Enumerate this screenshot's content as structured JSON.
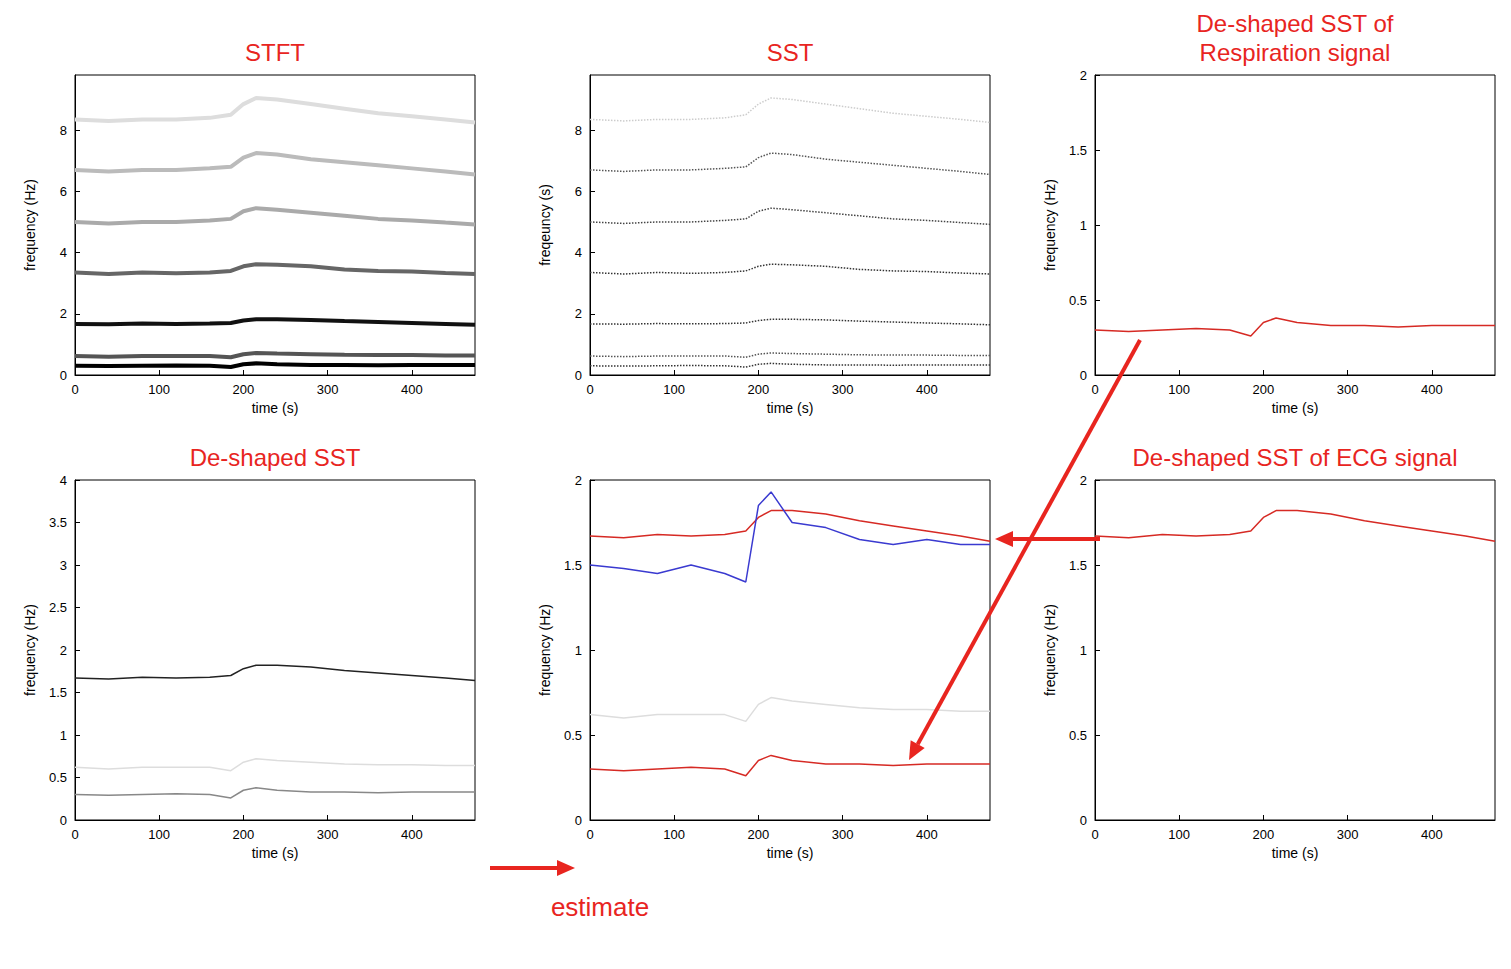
{
  "annotation": "estimate",
  "chart_data": [
    {
      "type": "line",
      "title": "STFT",
      "x_label": "time (s)",
      "y_label": "frequency (Hz)",
      "x": [
        0,
        40,
        80,
        120,
        160,
        185,
        200,
        215,
        240,
        280,
        320,
        360,
        400,
        440,
        475
      ],
      "xlim": [
        0,
        475
      ],
      "xticks": [
        0,
        100,
        200,
        300,
        400
      ],
      "ylim": [
        0,
        9.8
      ],
      "yticks": [
        0,
        2,
        4,
        6,
        8
      ],
      "grid": false,
      "series": [
        {
          "color": "#000000",
          "line_style": "solid",
          "values": [
            0.3,
            0.29,
            0.3,
            0.31,
            0.3,
            0.26,
            0.35,
            0.38,
            0.35,
            0.33,
            0.33,
            0.32,
            0.33,
            0.33,
            0.33
          ]
        },
        {
          "color": "#555555",
          "line_style": "solid",
          "values": [
            0.62,
            0.6,
            0.62,
            0.62,
            0.62,
            0.58,
            0.68,
            0.72,
            0.7,
            0.68,
            0.66,
            0.65,
            0.65,
            0.64,
            0.64
          ]
        },
        {
          "color": "#111111",
          "line_style": "solid",
          "values": [
            1.67,
            1.66,
            1.68,
            1.67,
            1.68,
            1.7,
            1.78,
            1.82,
            1.82,
            1.8,
            1.76,
            1.73,
            1.7,
            1.67,
            1.64
          ]
        },
        {
          "color": "#666666",
          "line_style": "solid",
          "values": [
            3.35,
            3.3,
            3.35,
            3.32,
            3.35,
            3.4,
            3.55,
            3.62,
            3.6,
            3.55,
            3.45,
            3.4,
            3.38,
            3.33,
            3.3
          ]
        },
        {
          "color": "#aaaaaa",
          "line_style": "solid",
          "values": [
            5.0,
            4.95,
            5.0,
            5.0,
            5.05,
            5.1,
            5.35,
            5.45,
            5.4,
            5.3,
            5.2,
            5.1,
            5.05,
            4.98,
            4.92
          ]
        },
        {
          "color": "#bbbbbb",
          "line_style": "solid",
          "values": [
            6.7,
            6.65,
            6.7,
            6.7,
            6.75,
            6.8,
            7.1,
            7.25,
            7.2,
            7.05,
            6.95,
            6.85,
            6.75,
            6.65,
            6.55
          ]
        },
        {
          "color": "#dddddd",
          "line_style": "solid",
          "values": [
            8.35,
            8.3,
            8.35,
            8.35,
            8.4,
            8.5,
            8.85,
            9.05,
            9.0,
            8.85,
            8.7,
            8.55,
            8.45,
            8.35,
            8.25
          ]
        }
      ]
    },
    {
      "type": "line",
      "title": "SST",
      "x_label": "time (s)",
      "y_label": "freqeuncy (s)",
      "x": [
        0,
        40,
        80,
        120,
        160,
        185,
        200,
        215,
        240,
        280,
        320,
        360,
        400,
        440,
        475
      ],
      "xlim": [
        0,
        475
      ],
      "xticks": [
        0,
        100,
        200,
        300,
        400
      ],
      "ylim": [
        0,
        9.8
      ],
      "yticks": [
        0,
        2,
        4,
        6,
        8
      ],
      "grid": false,
      "series": [
        {
          "color": "#333333",
          "line_style": "dotted",
          "values": [
            0.3,
            0.29,
            0.3,
            0.31,
            0.3,
            0.26,
            0.35,
            0.38,
            0.35,
            0.33,
            0.33,
            0.32,
            0.33,
            0.33,
            0.33
          ]
        },
        {
          "color": "#555555",
          "line_style": "dotted",
          "values": [
            0.62,
            0.6,
            0.62,
            0.62,
            0.62,
            0.58,
            0.68,
            0.72,
            0.7,
            0.68,
            0.66,
            0.65,
            0.65,
            0.64,
            0.64
          ]
        },
        {
          "color": "#333333",
          "line_style": "dotted",
          "values": [
            1.67,
            1.66,
            1.68,
            1.67,
            1.68,
            1.7,
            1.78,
            1.82,
            1.82,
            1.8,
            1.76,
            1.73,
            1.7,
            1.67,
            1.64
          ]
        },
        {
          "color": "#333333",
          "line_style": "dotted",
          "values": [
            3.35,
            3.3,
            3.35,
            3.32,
            3.35,
            3.4,
            3.55,
            3.62,
            3.6,
            3.55,
            3.45,
            3.4,
            3.38,
            3.33,
            3.3
          ]
        },
        {
          "color": "#444444",
          "line_style": "dotted",
          "values": [
            5.0,
            4.95,
            5.0,
            5.0,
            5.05,
            5.1,
            5.35,
            5.45,
            5.4,
            5.3,
            5.2,
            5.1,
            5.05,
            4.98,
            4.92
          ]
        },
        {
          "color": "#555555",
          "line_style": "dotted",
          "values": [
            6.7,
            6.65,
            6.7,
            6.7,
            6.75,
            6.8,
            7.1,
            7.25,
            7.2,
            7.05,
            6.95,
            6.85,
            6.75,
            6.65,
            6.55
          ]
        },
        {
          "color": "#cccccc",
          "line_style": "dotted",
          "values": [
            8.35,
            8.3,
            8.35,
            8.35,
            8.4,
            8.5,
            8.85,
            9.05,
            9.0,
            8.85,
            8.7,
            8.55,
            8.45,
            8.35,
            8.25
          ]
        }
      ]
    },
    {
      "type": "line",
      "title": "De-shaped SST of Respiration signal",
      "x_label": "time (s)",
      "y_label": "frequency (Hz)",
      "x": [
        0,
        40,
        80,
        120,
        160,
        185,
        200,
        215,
        240,
        280,
        320,
        360,
        400,
        440,
        475
      ],
      "xlim": [
        0,
        475
      ],
      "xticks": [
        0,
        100,
        200,
        300,
        400
      ],
      "ylim": [
        0,
        2
      ],
      "yticks": [
        0,
        0.5,
        1,
        1.5,
        2
      ],
      "grid": false,
      "series": [
        {
          "color": "#d62a24",
          "line_style": "solid",
          "values": [
            0.3,
            0.29,
            0.3,
            0.31,
            0.3,
            0.26,
            0.35,
            0.38,
            0.35,
            0.33,
            0.33,
            0.32,
            0.33,
            0.33,
            0.33
          ]
        }
      ]
    },
    {
      "type": "line",
      "title": "De-shaped SST",
      "x_label": "time (s)",
      "y_label": "frequency (Hz)",
      "x": [
        0,
        40,
        80,
        120,
        160,
        185,
        200,
        215,
        240,
        280,
        320,
        360,
        400,
        440,
        475
      ],
      "xlim": [
        0,
        475
      ],
      "xticks": [
        0,
        100,
        200,
        300,
        400
      ],
      "ylim": [
        0,
        4
      ],
      "yticks": [
        0,
        0.5,
        1,
        1.5,
        2,
        2.5,
        3,
        3.5,
        4
      ],
      "grid": false,
      "series": [
        {
          "color": "#222222",
          "line_style": "solid",
          "values": [
            1.67,
            1.66,
            1.68,
            1.67,
            1.68,
            1.7,
            1.78,
            1.82,
            1.82,
            1.8,
            1.76,
            1.73,
            1.7,
            1.67,
            1.64
          ]
        },
        {
          "color": "#888888",
          "line_style": "solid",
          "values": [
            0.3,
            0.29,
            0.3,
            0.31,
            0.3,
            0.26,
            0.35,
            0.38,
            0.35,
            0.33,
            0.33,
            0.32,
            0.33,
            0.33,
            0.33
          ]
        },
        {
          "color": "#dddddd",
          "line_style": "solid",
          "values": [
            0.62,
            0.6,
            0.62,
            0.62,
            0.62,
            0.58,
            0.68,
            0.72,
            0.7,
            0.68,
            0.66,
            0.65,
            0.65,
            0.64,
            0.64
          ]
        }
      ]
    },
    {
      "type": "line",
      "x_label": "time (s)",
      "y_label": "frequency (Hz)",
      "x": [
        0,
        40,
        80,
        120,
        160,
        185,
        200,
        215,
        240,
        280,
        320,
        360,
        400,
        440,
        475
      ],
      "xlim": [
        0,
        475
      ],
      "xticks": [
        0,
        100,
        200,
        300,
        400
      ],
      "ylim": [
        0,
        2
      ],
      "yticks": [
        0,
        0.5,
        1,
        1.5,
        2
      ],
      "grid": false,
      "series": [
        {
          "color": "#dddddd",
          "line_style": "solid",
          "values": [
            0.62,
            0.6,
            0.62,
            0.62,
            0.62,
            0.58,
            0.68,
            0.72,
            0.7,
            0.68,
            0.66,
            0.65,
            0.65,
            0.64,
            0.64
          ]
        },
        {
          "color": "#d62a24",
          "line_style": "solid",
          "values": [
            1.67,
            1.66,
            1.68,
            1.67,
            1.68,
            1.7,
            1.78,
            1.82,
            1.82,
            1.8,
            1.76,
            1.73,
            1.7,
            1.67,
            1.64
          ]
        },
        {
          "color": "#3a3ad0",
          "line_style": "solid",
          "values": [
            1.5,
            1.48,
            1.45,
            1.5,
            1.45,
            1.4,
            1.85,
            1.93,
            1.75,
            1.72,
            1.65,
            1.62,
            1.65,
            1.62,
            1.62
          ]
        },
        {
          "color": "#d62a24",
          "line_style": "solid",
          "values": [
            0.3,
            0.29,
            0.3,
            0.31,
            0.3,
            0.26,
            0.35,
            0.38,
            0.35,
            0.33,
            0.33,
            0.32,
            0.33,
            0.33,
            0.33
          ]
        }
      ]
    },
    {
      "type": "line",
      "title": "De-shaped SST of ECG signal",
      "x_label": "time (s)",
      "y_label": "frequency (Hz)",
      "x": [
        0,
        40,
        80,
        120,
        160,
        185,
        200,
        215,
        240,
        280,
        320,
        360,
        400,
        440,
        475
      ],
      "xlim": [
        0,
        475
      ],
      "xticks": [
        0,
        100,
        200,
        300,
        400
      ],
      "ylim": [
        0,
        2
      ],
      "yticks": [
        0,
        0.5,
        1,
        1.5,
        2
      ],
      "grid": false,
      "series": [
        {
          "color": "#d62a24",
          "line_style": "solid",
          "values": [
            1.67,
            1.66,
            1.68,
            1.67,
            1.68,
            1.7,
            1.78,
            1.82,
            1.82,
            1.8,
            1.76,
            1.73,
            1.7,
            1.67,
            1.64
          ]
        }
      ]
    }
  ]
}
